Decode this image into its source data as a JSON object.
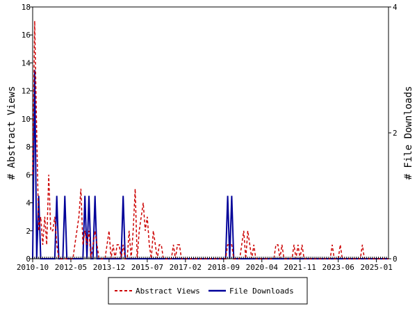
{
  "chart_data": {
    "type": "line",
    "title": "",
    "xlabel": "",
    "ylabel": "# Abstract Views",
    "y2label": "# File Downloads",
    "ylim": [
      0,
      18
    ],
    "y2lim": [
      0,
      4
    ],
    "yticks": [
      0,
      2,
      4,
      6,
      8,
      10,
      12,
      14,
      16,
      18
    ],
    "y2ticks": [
      0,
      2,
      4
    ],
    "x_range": [
      "2010-10",
      "2025-07"
    ],
    "xticks": [
      "2010-10",
      "2012-05",
      "2013-12",
      "2015-07",
      "2017-02",
      "2018-09",
      "2020-04",
      "2021-11",
      "2023-06",
      "2025-01"
    ],
    "grid": false,
    "legend": "bottom-center",
    "series": [
      {
        "name": "Abstract Views",
        "axis": "left",
        "color": "#cc0000",
        "style": "dashed",
        "points": [
          [
            "2010-10",
            6
          ],
          [
            "2010-11",
            17
          ],
          [
            "2010-12",
            9
          ],
          [
            "2011-01",
            2
          ],
          [
            "2011-02",
            3
          ],
          [
            "2011-03",
            1
          ],
          [
            "2011-04",
            3
          ],
          [
            "2011-05",
            1
          ],
          [
            "2011-06",
            6
          ],
          [
            "2011-07",
            2
          ],
          [
            "2011-08",
            2
          ],
          [
            "2011-09",
            3
          ],
          [
            "2011-10",
            1
          ],
          [
            "2011-11",
            0
          ],
          [
            "2011-12",
            0
          ],
          [
            "2012-01",
            0
          ],
          [
            "2012-02",
            0
          ],
          [
            "2012-03",
            0
          ],
          [
            "2012-04",
            0
          ],
          [
            "2012-05",
            0
          ],
          [
            "2012-06",
            0
          ],
          [
            "2012-07",
            1
          ],
          [
            "2012-08",
            2
          ],
          [
            "2012-09",
            3
          ],
          [
            "2012-10",
            5
          ],
          [
            "2012-11",
            1
          ],
          [
            "2012-12",
            2
          ],
          [
            "2013-01",
            1
          ],
          [
            "2013-02",
            2
          ],
          [
            "2013-03",
            0
          ],
          [
            "2013-04",
            1
          ],
          [
            "2013-05",
            2
          ],
          [
            "2013-06",
            1
          ],
          [
            "2013-07",
            0
          ],
          [
            "2013-08",
            0
          ],
          [
            "2013-09",
            0
          ],
          [
            "2013-10",
            0
          ],
          [
            "2013-11",
            1
          ],
          [
            "2013-12",
            2
          ],
          [
            "2014-01",
            0
          ],
          [
            "2014-02",
            1
          ],
          [
            "2014-03",
            0
          ],
          [
            "2014-04",
            1
          ],
          [
            "2014-05",
            1
          ],
          [
            "2014-06",
            0
          ],
          [
            "2014-07",
            1
          ],
          [
            "2014-08",
            0
          ],
          [
            "2014-09",
            0
          ],
          [
            "2014-10",
            2
          ],
          [
            "2014-11",
            0
          ],
          [
            "2014-12",
            2
          ],
          [
            "2015-01",
            5
          ],
          [
            "2015-02",
            0
          ],
          [
            "2015-03",
            2
          ],
          [
            "2015-04",
            3
          ],
          [
            "2015-05",
            4
          ],
          [
            "2015-06",
            2
          ],
          [
            "2015-07",
            3
          ],
          [
            "2015-08",
            1
          ],
          [
            "2015-09",
            0
          ],
          [
            "2015-10",
            2
          ],
          [
            "2015-11",
            1
          ],
          [
            "2015-12",
            0
          ],
          [
            "2016-01",
            1
          ],
          [
            "2016-02",
            1
          ],
          [
            "2016-03",
            0
          ],
          [
            "2016-04",
            0
          ],
          [
            "2016-05",
            0
          ],
          [
            "2016-06",
            0
          ],
          [
            "2016-07",
            0
          ],
          [
            "2016-08",
            1
          ],
          [
            "2016-09",
            0
          ],
          [
            "2016-10",
            1
          ],
          [
            "2016-11",
            1
          ],
          [
            "2016-12",
            0
          ],
          [
            "2017-01",
            0
          ],
          [
            "2017-02",
            0
          ],
          [
            "2017-03",
            0
          ],
          [
            "2017-04",
            0
          ],
          [
            "2017-05",
            0
          ],
          [
            "2017-06",
            0
          ],
          [
            "2017-07",
            0
          ],
          [
            "2017-08",
            0
          ],
          [
            "2017-09",
            0
          ],
          [
            "2017-10",
            0
          ],
          [
            "2017-11",
            0
          ],
          [
            "2017-12",
            0
          ],
          [
            "2018-01",
            0
          ],
          [
            "2018-02",
            0
          ],
          [
            "2018-03",
            0
          ],
          [
            "2018-04",
            0
          ],
          [
            "2018-05",
            0
          ],
          [
            "2018-06",
            0
          ],
          [
            "2018-07",
            0
          ],
          [
            "2018-08",
            0
          ],
          [
            "2018-09",
            0
          ],
          [
            "2018-10",
            0
          ],
          [
            "2018-11",
            1
          ],
          [
            "2018-12",
            1
          ],
          [
            "2019-01",
            1
          ],
          [
            "2019-02",
            0
          ],
          [
            "2019-03",
            0
          ],
          [
            "2019-04",
            0
          ],
          [
            "2019-05",
            0
          ],
          [
            "2019-06",
            1
          ],
          [
            "2019-07",
            2
          ],
          [
            "2019-08",
            0
          ],
          [
            "2019-09",
            2
          ],
          [
            "2019-10",
            1
          ],
          [
            "2019-11",
            0
          ],
          [
            "2019-12",
            1
          ],
          [
            "2020-01",
            0
          ],
          [
            "2020-02",
            0
          ],
          [
            "2020-03",
            0
          ],
          [
            "2020-04",
            0
          ],
          [
            "2020-05",
            0
          ],
          [
            "2020-06",
            0
          ],
          [
            "2020-07",
            0
          ],
          [
            "2020-08",
            0
          ],
          [
            "2020-09",
            0
          ],
          [
            "2020-10",
            0
          ],
          [
            "2020-11",
            1
          ],
          [
            "2020-12",
            1
          ],
          [
            "2021-01",
            0
          ],
          [
            "2021-02",
            1
          ],
          [
            "2021-03",
            0
          ],
          [
            "2021-04",
            0
          ],
          [
            "2021-05",
            0
          ],
          [
            "2021-06",
            0
          ],
          [
            "2021-07",
            0
          ],
          [
            "2021-08",
            1
          ],
          [
            "2021-09",
            0
          ],
          [
            "2021-10",
            1
          ],
          [
            "2021-11",
            0
          ],
          [
            "2021-12",
            1
          ],
          [
            "2022-01",
            0
          ],
          [
            "2022-02",
            0
          ],
          [
            "2022-03",
            0
          ],
          [
            "2022-04",
            0
          ],
          [
            "2022-05",
            0
          ],
          [
            "2022-06",
            0
          ],
          [
            "2022-07",
            0
          ],
          [
            "2022-08",
            0
          ],
          [
            "2022-09",
            0
          ],
          [
            "2022-10",
            0
          ],
          [
            "2022-11",
            0
          ],
          [
            "2022-12",
            0
          ],
          [
            "2023-01",
            0
          ],
          [
            "2023-02",
            0
          ],
          [
            "2023-03",
            1
          ],
          [
            "2023-04",
            0
          ],
          [
            "2023-05",
            0
          ],
          [
            "2023-06",
            0
          ],
          [
            "2023-07",
            1
          ],
          [
            "2023-08",
            0
          ],
          [
            "2023-09",
            0
          ],
          [
            "2023-10",
            0
          ],
          [
            "2023-11",
            0
          ],
          [
            "2023-12",
            0
          ],
          [
            "2024-01",
            0
          ],
          [
            "2024-02",
            0
          ],
          [
            "2024-03",
            0
          ],
          [
            "2024-04",
            0
          ],
          [
            "2024-05",
            0
          ],
          [
            "2024-06",
            1
          ],
          [
            "2024-07",
            0
          ],
          [
            "2024-08",
            0
          ],
          [
            "2024-09",
            0
          ],
          [
            "2024-10",
            0
          ],
          [
            "2024-11",
            0
          ],
          [
            "2024-12",
            0
          ],
          [
            "2025-01",
            0
          ],
          [
            "2025-07",
            0
          ]
        ]
      },
      {
        "name": "File Downloads",
        "axis": "right",
        "color": "#000099",
        "style": "solid",
        "points": [
          [
            "2010-10",
            0
          ],
          [
            "2010-11",
            3
          ],
          [
            "2010-12",
            0
          ],
          [
            "2011-01",
            1
          ],
          [
            "2011-02",
            0
          ],
          [
            "2011-03",
            0
          ],
          [
            "2011-04",
            0
          ],
          [
            "2011-05",
            0
          ],
          [
            "2011-06",
            0
          ],
          [
            "2011-07",
            0
          ],
          [
            "2011-08",
            0
          ],
          [
            "2011-09",
            0
          ],
          [
            "2011-10",
            1
          ],
          [
            "2011-11",
            0
          ],
          [
            "2011-12",
            0
          ],
          [
            "2012-01",
            0
          ],
          [
            "2012-02",
            1
          ],
          [
            "2012-03",
            0
          ],
          [
            "2012-04",
            0
          ],
          [
            "2012-05",
            0
          ],
          [
            "2012-06",
            0
          ],
          [
            "2012-07",
            0
          ],
          [
            "2012-08",
            0
          ],
          [
            "2012-09",
            0
          ],
          [
            "2012-10",
            0
          ],
          [
            "2012-11",
            0
          ],
          [
            "2012-12",
            1
          ],
          [
            "2013-01",
            0
          ],
          [
            "2013-02",
            1
          ],
          [
            "2013-03",
            0
          ],
          [
            "2013-04",
            0
          ],
          [
            "2013-05",
            1
          ],
          [
            "2013-06",
            0
          ],
          [
            "2013-07",
            0
          ],
          [
            "2013-08",
            0
          ],
          [
            "2013-09",
            0
          ],
          [
            "2013-10",
            0
          ],
          [
            "2013-11",
            0
          ],
          [
            "2013-12",
            0
          ],
          [
            "2014-01",
            0
          ],
          [
            "2014-02",
            0
          ],
          [
            "2014-03",
            0
          ],
          [
            "2014-04",
            0
          ],
          [
            "2014-05",
            0
          ],
          [
            "2014-06",
            0
          ],
          [
            "2014-07",
            1
          ],
          [
            "2014-08",
            0
          ],
          [
            "2014-09",
            0
          ],
          [
            "2014-10",
            0
          ],
          [
            "2014-11",
            0
          ],
          [
            "2014-12",
            0
          ],
          [
            "2015-01",
            0
          ],
          [
            "2015-02",
            0
          ],
          [
            "2015-03",
            0
          ],
          [
            "2015-04",
            0
          ],
          [
            "2015-05",
            0
          ],
          [
            "2015-06",
            0
          ],
          [
            "2015-07",
            0
          ],
          [
            "2015-08",
            0
          ],
          [
            "2015-09",
            0
          ],
          [
            "2015-10",
            0
          ],
          [
            "2015-11",
            0
          ],
          [
            "2015-12",
            0
          ],
          [
            "2016-01",
            0
          ],
          [
            "2016-02",
            0
          ],
          [
            "2016-03",
            0
          ],
          [
            "2016-04",
            0
          ],
          [
            "2016-05",
            0
          ],
          [
            "2016-06",
            0
          ],
          [
            "2016-07",
            0
          ],
          [
            "2016-08",
            0
          ],
          [
            "2016-09",
            0
          ],
          [
            "2016-10",
            0
          ],
          [
            "2016-11",
            0
          ],
          [
            "2016-12",
            0
          ],
          [
            "2017-01",
            0
          ],
          [
            "2017-02",
            0
          ],
          [
            "2017-03",
            0
          ],
          [
            "2017-04",
            0
          ],
          [
            "2017-05",
            0
          ],
          [
            "2017-06",
            0
          ],
          [
            "2017-07",
            0
          ],
          [
            "2017-08",
            0
          ],
          [
            "2017-09",
            0
          ],
          [
            "2017-10",
            0
          ],
          [
            "2017-11",
            0
          ],
          [
            "2017-12",
            0
          ],
          [
            "2018-01",
            0
          ],
          [
            "2018-02",
            0
          ],
          [
            "2018-03",
            0
          ],
          [
            "2018-04",
            0
          ],
          [
            "2018-05",
            0
          ],
          [
            "2018-06",
            0
          ],
          [
            "2018-07",
            0
          ],
          [
            "2018-08",
            0
          ],
          [
            "2018-09",
            0
          ],
          [
            "2018-10",
            0
          ],
          [
            "2018-11",
            1
          ],
          [
            "2018-12",
            0
          ],
          [
            "2019-01",
            1
          ],
          [
            "2019-02",
            0
          ],
          [
            "2019-03",
            0
          ],
          [
            "2019-04",
            0
          ],
          [
            "2019-05",
            0
          ],
          [
            "2019-06",
            0
          ],
          [
            "2019-07",
            0
          ],
          [
            "2019-08",
            0
          ],
          [
            "2019-09",
            0
          ],
          [
            "2019-10",
            0
          ],
          [
            "2019-11",
            0
          ],
          [
            "2019-12",
            0
          ],
          [
            "2025-07",
            0
          ]
        ]
      }
    ]
  }
}
